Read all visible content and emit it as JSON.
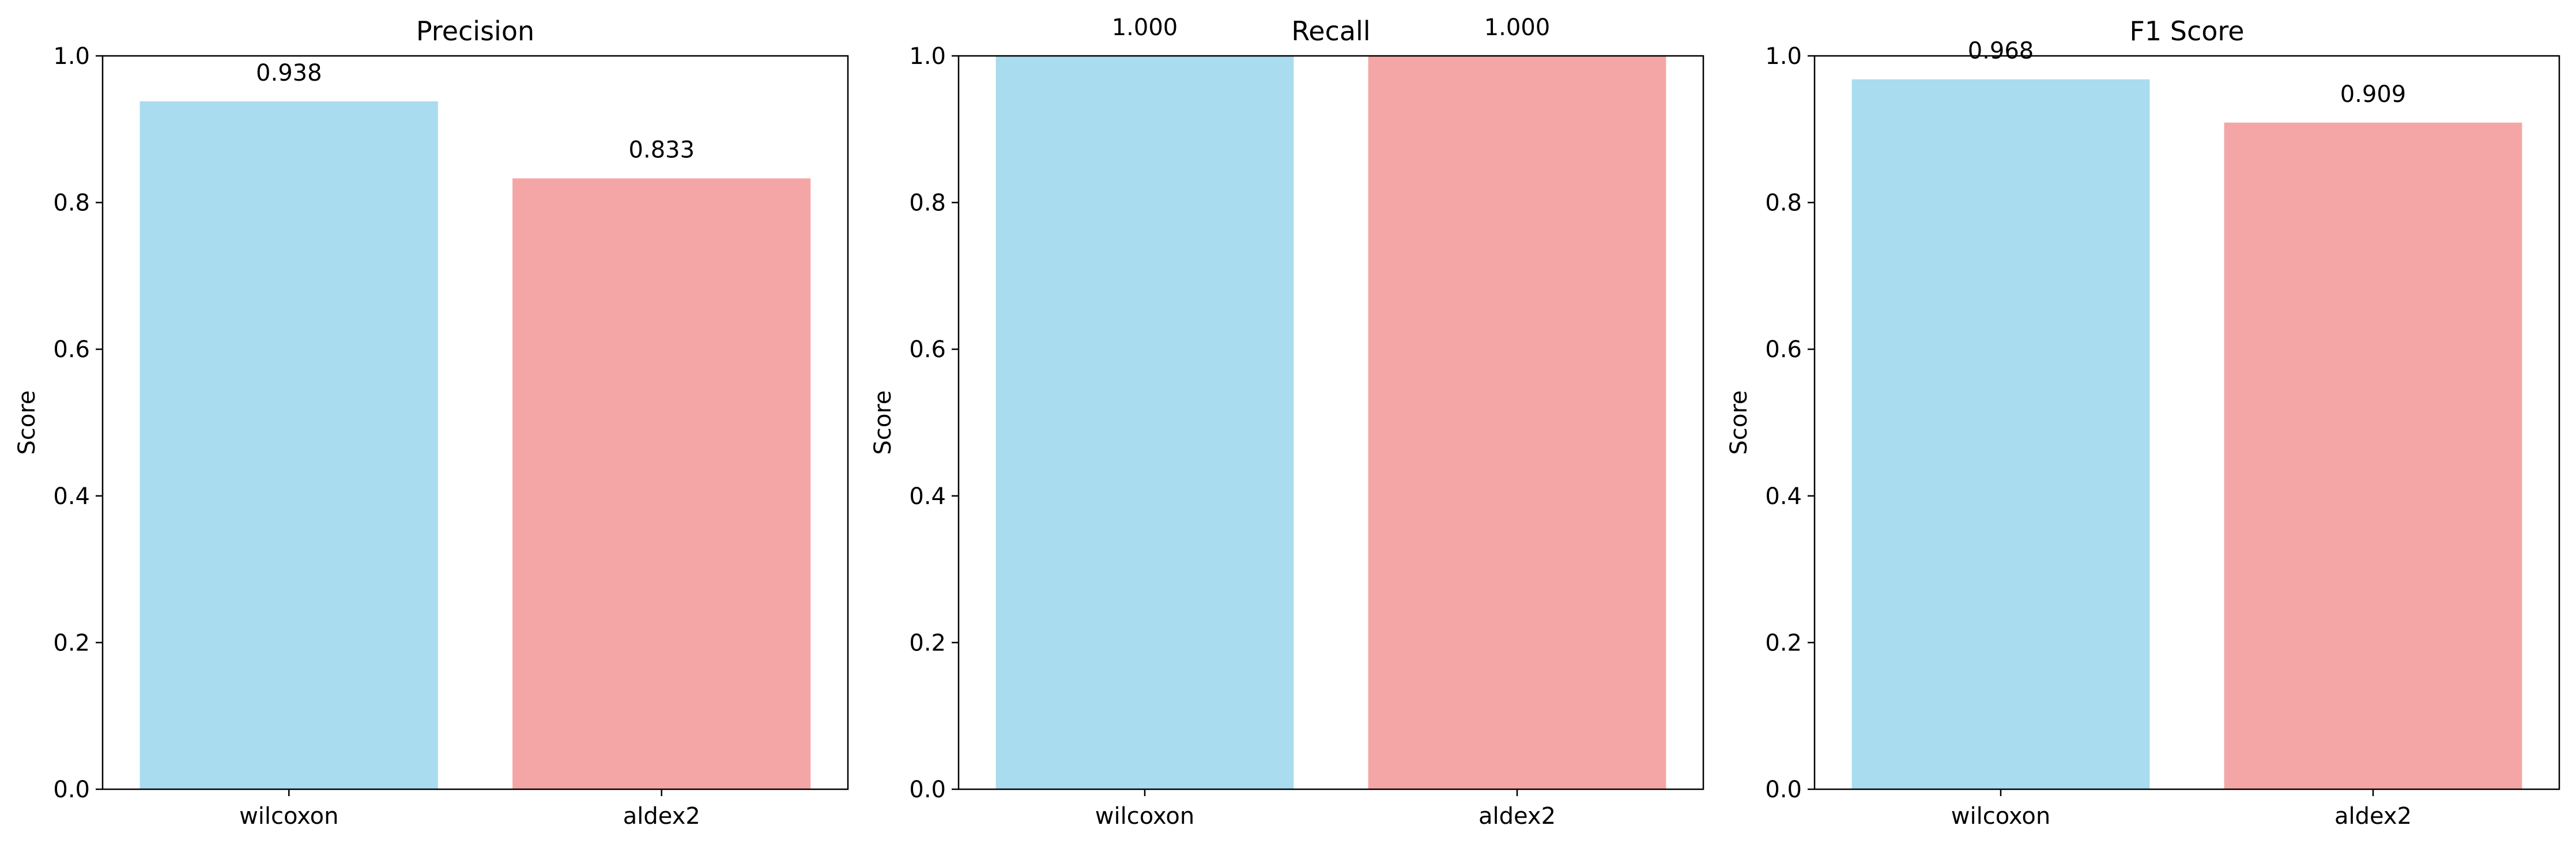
{
  "chart_data": [
    {
      "type": "bar",
      "title": "Precision",
      "xlabel": "",
      "ylabel": "Score",
      "categories": [
        "wilcoxon",
        "aldex2"
      ],
      "values": [
        0.938,
        0.833
      ],
      "value_labels": [
        "0.938",
        "0.833"
      ],
      "ylim": [
        0,
        1.0
      ],
      "yticks": [
        "0.0",
        "0.2",
        "0.4",
        "0.6",
        "0.8",
        "1.0"
      ],
      "colors": [
        "#a8dcee",
        "#f4a6a6"
      ],
      "grid": false,
      "legend": "none"
    },
    {
      "type": "bar",
      "title": "Recall",
      "xlabel": "",
      "ylabel": "Score",
      "categories": [
        "wilcoxon",
        "aldex2"
      ],
      "values": [
        1.0,
        1.0
      ],
      "value_labels": [
        "1.000",
        "1.000"
      ],
      "ylim": [
        0,
        1.0
      ],
      "yticks": [
        "0.0",
        "0.2",
        "0.4",
        "0.6",
        "0.8",
        "1.0"
      ],
      "colors": [
        "#a8dcee",
        "#f4a6a6"
      ],
      "grid": false,
      "legend": "none"
    },
    {
      "type": "bar",
      "title": "F1 Score",
      "xlabel": "",
      "ylabel": "Score",
      "categories": [
        "wilcoxon",
        "aldex2"
      ],
      "values": [
        0.968,
        0.909
      ],
      "value_labels": [
        "0.968",
        "0.909"
      ],
      "ylim": [
        0,
        1.0
      ],
      "yticks": [
        "0.0",
        "0.2",
        "0.4",
        "0.6",
        "0.8",
        "1.0"
      ],
      "colors": [
        "#a8dcee",
        "#f4a6a6"
      ],
      "grid": false,
      "legend": "none"
    }
  ]
}
